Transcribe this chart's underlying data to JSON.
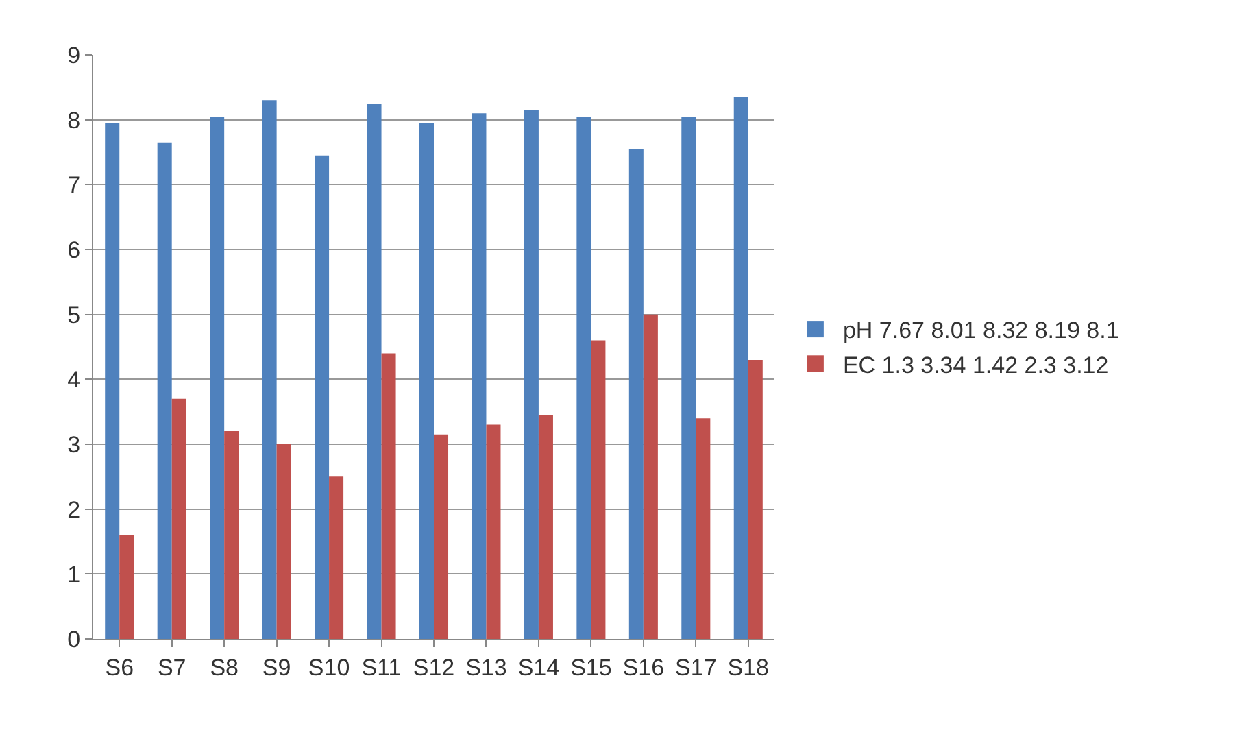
{
  "chart_data": {
    "type": "bar",
    "categories": [
      "S6",
      "S7",
      "S8",
      "S9",
      "S10",
      "S11",
      "S12",
      "S13",
      "S14",
      "S15",
      "S16",
      "S17",
      "S18"
    ],
    "series": [
      {
        "name": "pH 7.67 8.01 8.32 8.19 8.1",
        "color": "#4f81bd",
        "values": [
          7.95,
          7.65,
          8.05,
          8.3,
          7.45,
          8.25,
          7.95,
          8.1,
          8.15,
          8.05,
          7.55,
          8.05,
          8.35
        ]
      },
      {
        "name": "EC 1.3 3.34 1.42 2.3 3.12",
        "color": "#c0504d",
        "values": [
          1.6,
          3.7,
          3.2,
          3.0,
          2.5,
          4.4,
          3.15,
          3.3,
          3.45,
          4.6,
          5.0,
          3.4,
          4.3
        ]
      }
    ],
    "ylim": [
      0,
      9
    ],
    "yticks": [
      0,
      1,
      2,
      3,
      4,
      5,
      6,
      7,
      8,
      9
    ],
    "grid": "y",
    "legend": "right"
  }
}
